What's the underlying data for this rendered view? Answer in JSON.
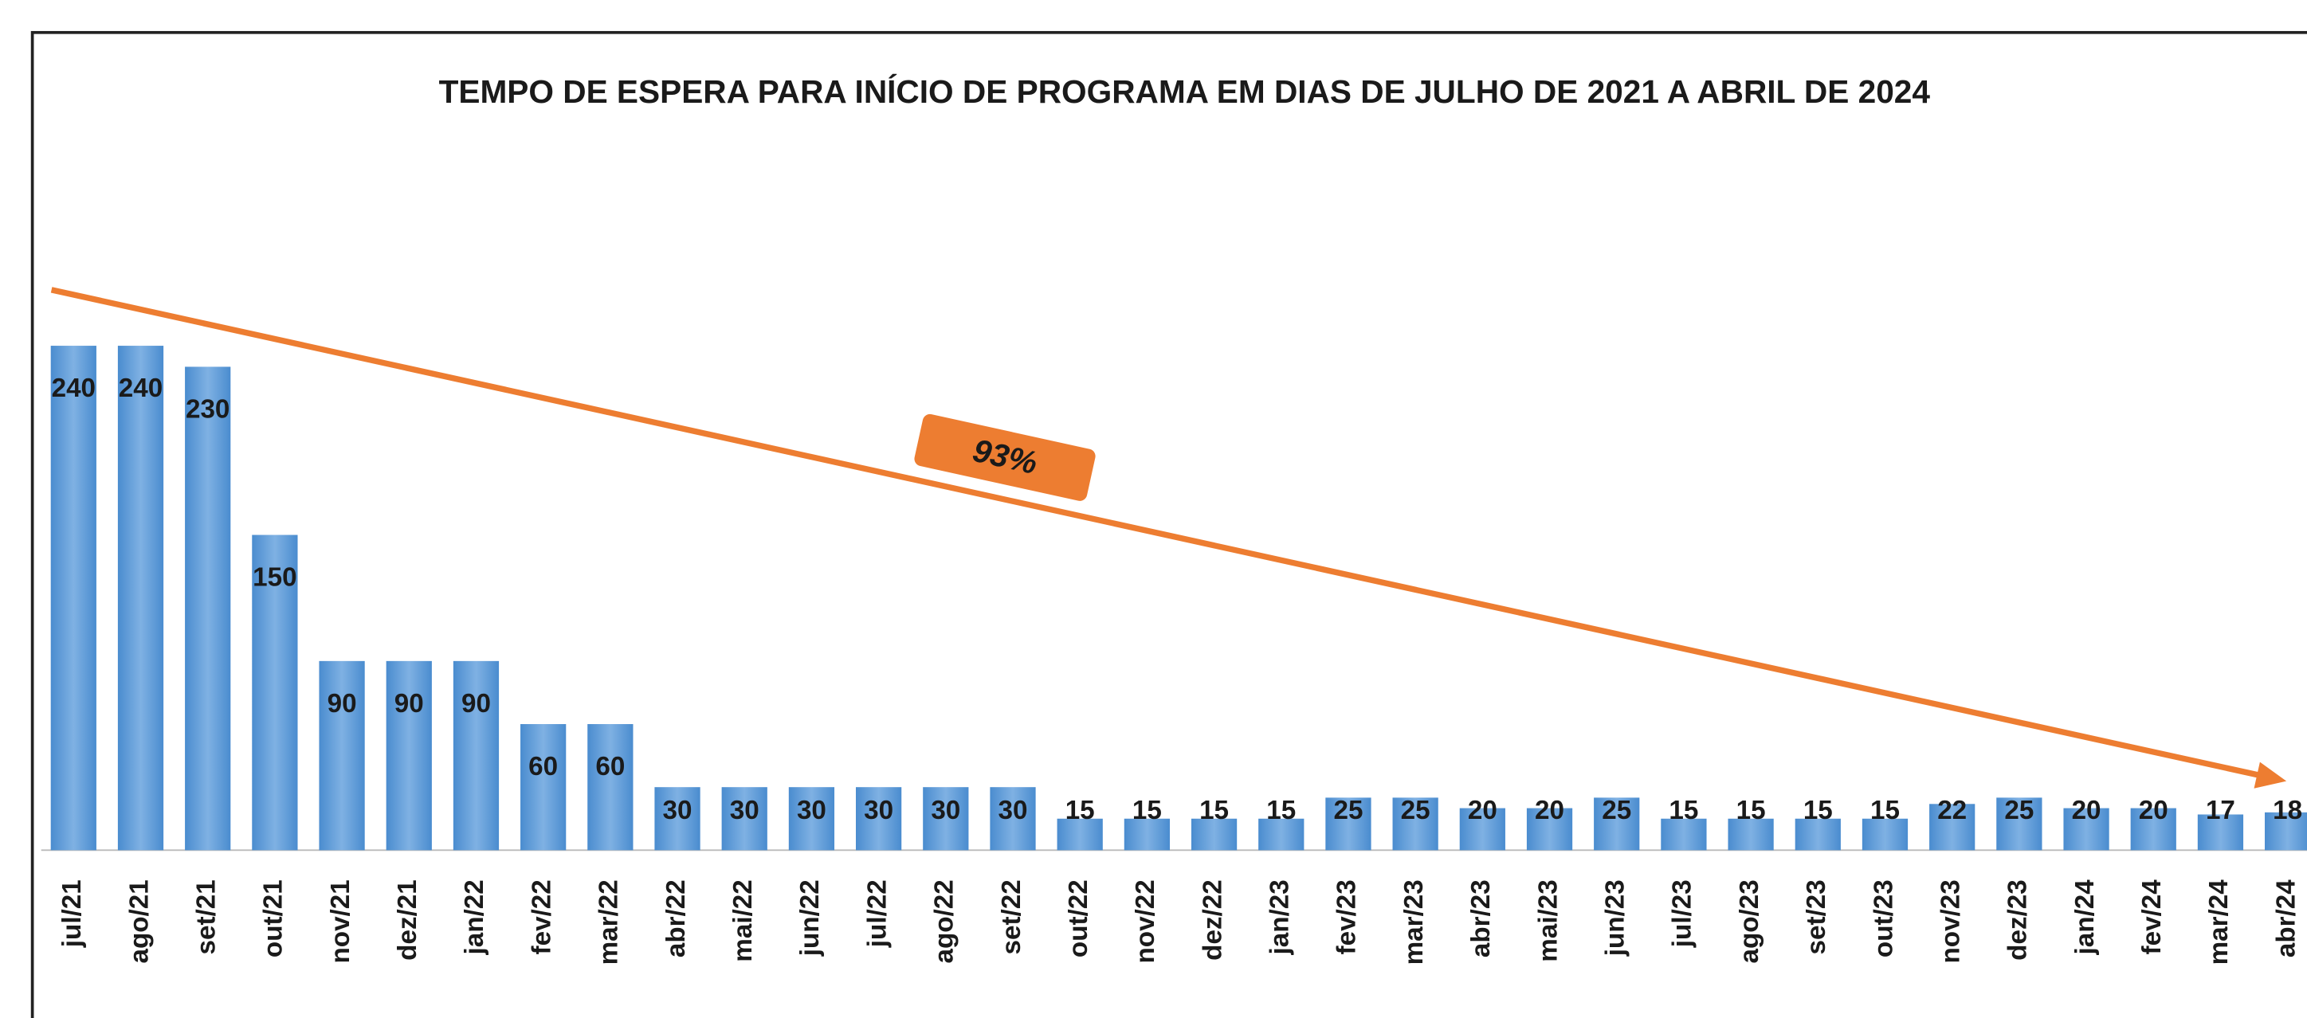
{
  "chart_data": {
    "type": "bar",
    "title": "TEMPO DE ESPERA PARA INÍCIO DE PROGRAMA EM DIAS DE JULHO DE 2021 A ABRIL DE 2024",
    "annotation": "93%",
    "categories": [
      "jul/21",
      "ago/21",
      "set/21",
      "out/21",
      "nov/21",
      "dez/21",
      "jan/22",
      "fev/22",
      "mar/22",
      "abr/22",
      "mai/22",
      "jun/22",
      "jul/22",
      "ago/22",
      "set/22",
      "out/22",
      "nov/22",
      "dez/22",
      "jan/23",
      "fev/23",
      "mar/23",
      "abr/23",
      "mai/23",
      "jun/23",
      "jul/23",
      "ago/23",
      "set/23",
      "out/23",
      "nov/23",
      "dez/23",
      "jan/24",
      "fev/24",
      "mar/24",
      "abr/24"
    ],
    "values": [
      240,
      240,
      230,
      150,
      90,
      90,
      90,
      60,
      60,
      30,
      30,
      30,
      30,
      30,
      30,
      15,
      15,
      15,
      15,
      25,
      25,
      20,
      20,
      25,
      15,
      15,
      15,
      15,
      22,
      25,
      20,
      20,
      17,
      18
    ],
    "color": "#5b9bd5",
    "trend_color": "#ed7d31"
  }
}
